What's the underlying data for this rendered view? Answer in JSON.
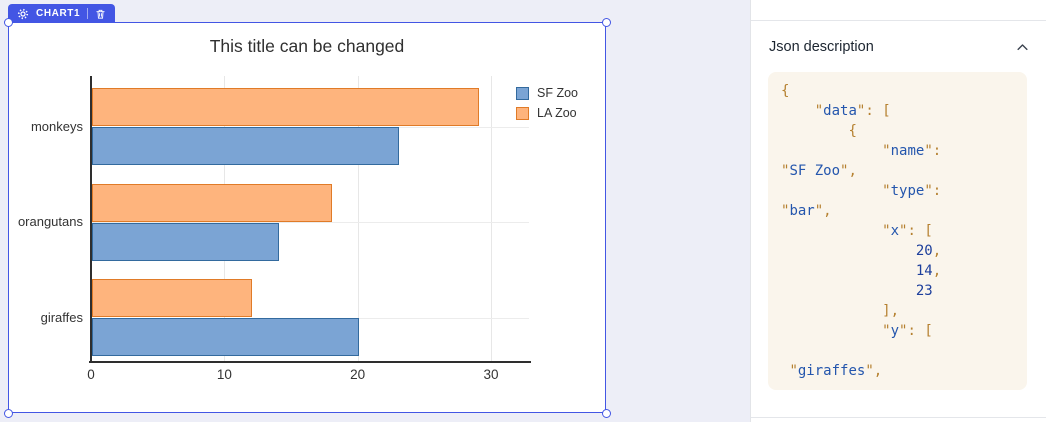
{
  "badge": {
    "label": "CHART1"
  },
  "colors": {
    "accent_blue": "#4356e4",
    "canvas_bg": "#edeef7",
    "code_bg": "#faf5ec",
    "code_punctuation": "#b5802f",
    "code_string": "#2456ad",
    "code_number": "#1d3f9c"
  },
  "panel": {
    "title": "Json description",
    "code_lines": [
      "{",
      "    \"data\": [",
      "        {",
      "            \"name\":",
      "\"SF Zoo\",",
      "            \"type\":",
      "\"bar\",",
      "            \"x\": [",
      "                20,",
      "                14,",
      "                23",
      "            ],",
      "            \"y\": [",
      "",
      " \"giraffes\","
    ]
  },
  "chart_data": {
    "type": "bar",
    "orientation": "horizontal",
    "title": "This title can be changed",
    "categories": [
      "monkeys",
      "orangutans",
      "giraffes"
    ],
    "series": [
      {
        "name": "SF Zoo",
        "values": [
          23,
          14,
          20
        ],
        "fill": "#7ba4d4",
        "border": "#336a9e"
      },
      {
        "name": "LA Zoo",
        "values": [
          29,
          18,
          12
        ],
        "fill": "#feb47d",
        "border": "#e07b28"
      }
    ],
    "xlim": [
      0,
      30
    ],
    "xticks": [
      0,
      10,
      20,
      30
    ],
    "grid": true,
    "legend_position": "top-right"
  }
}
